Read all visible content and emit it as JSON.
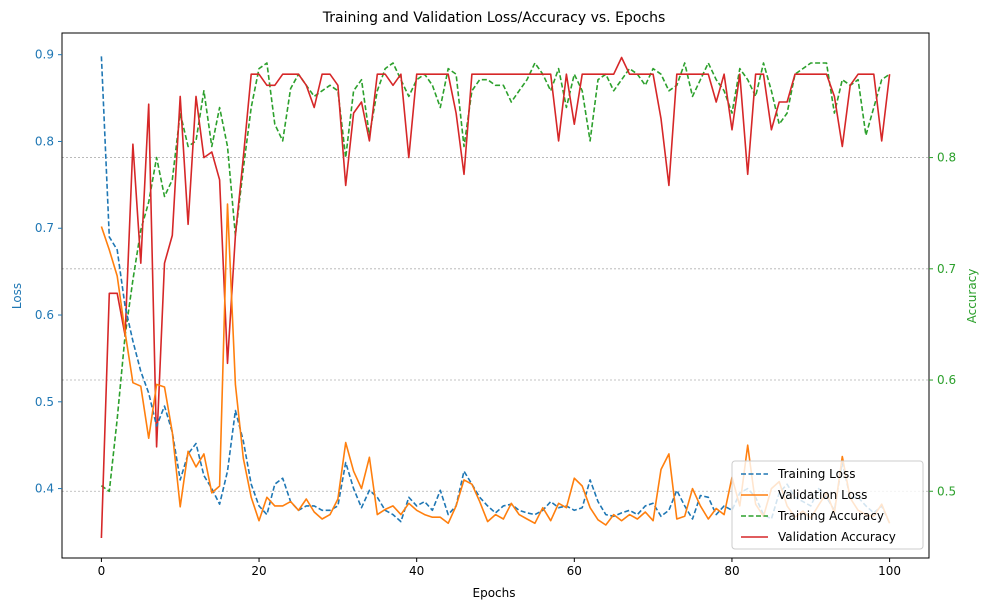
{
  "chart_data": {
    "type": "line",
    "title": "Training and Validation Loss/Accuracy vs. Epochs",
    "xlabel": "Epochs",
    "ylabel_left": "Loss",
    "ylabel_right": "Accuracy",
    "xlim": [
      -5,
      105
    ],
    "ylim_left": [
      0.32,
      0.925
    ],
    "ylim_right": [
      0.44,
      0.912
    ],
    "xticks": [
      0,
      20,
      40,
      60,
      80,
      100
    ],
    "yticks_left": [
      0.4,
      0.5,
      0.6,
      0.7,
      0.8,
      0.9
    ],
    "yticks_right": [
      0.5,
      0.6,
      0.7,
      0.8
    ],
    "grid": "right-axis horizontal, dotted",
    "legend_position": "lower-right",
    "colors": {
      "training_loss": "#1f77b4",
      "validation_loss": "#ff7f0e",
      "training_accuracy": "#2ca02c",
      "validation_accuracy": "#d62728",
      "left_axis": "#1f77b4",
      "right_axis": "#2ca02c"
    },
    "series": [
      {
        "name": "Training Loss",
        "axis": "left",
        "style": "dashed",
        "color": "#1f77b4",
        "x": [
          0,
          1,
          2,
          3,
          4,
          5,
          6,
          7,
          8,
          9,
          10,
          11,
          12,
          13,
          14,
          15,
          16,
          17,
          18,
          19,
          20,
          21,
          22,
          23,
          24,
          25,
          26,
          27,
          28,
          29,
          30,
          31,
          32,
          33,
          34,
          35,
          36,
          37,
          38,
          39,
          40,
          41,
          42,
          43,
          44,
          45,
          46,
          47,
          48,
          49,
          50,
          51,
          52,
          53,
          54,
          55,
          56,
          57,
          58,
          59,
          60,
          61,
          62,
          63,
          64,
          65,
          66,
          67,
          68,
          69,
          70,
          71,
          72,
          73,
          74,
          75,
          76,
          77,
          78,
          79,
          80,
          81,
          82,
          83,
          84,
          85,
          86,
          87,
          88,
          89,
          90,
          91,
          92,
          93,
          94,
          95,
          96,
          97,
          98,
          99,
          100
        ],
        "y": [
          0.898,
          0.69,
          0.675,
          0.61,
          0.57,
          0.535,
          0.51,
          0.472,
          0.495,
          0.465,
          0.41,
          0.44,
          0.452,
          0.415,
          0.4,
          0.382,
          0.42,
          0.49,
          0.455,
          0.405,
          0.38,
          0.37,
          0.405,
          0.412,
          0.385,
          0.375,
          0.38,
          0.38,
          0.375,
          0.375,
          0.38,
          0.43,
          0.4,
          0.378,
          0.398,
          0.39,
          0.375,
          0.37,
          0.362,
          0.39,
          0.38,
          0.385,
          0.375,
          0.398,
          0.37,
          0.38,
          0.42,
          0.405,
          0.39,
          0.38,
          0.372,
          0.38,
          0.382,
          0.375,
          0.372,
          0.37,
          0.375,
          0.385,
          0.378,
          0.38,
          0.375,
          0.378,
          0.41,
          0.385,
          0.37,
          0.368,
          0.372,
          0.375,
          0.37,
          0.38,
          0.383,
          0.368,
          0.375,
          0.398,
          0.38,
          0.365,
          0.392,
          0.39,
          0.37,
          0.38,
          0.375,
          0.395,
          0.4,
          0.39,
          0.37,
          0.365,
          0.395,
          0.405,
          0.39,
          0.385,
          0.38,
          0.4,
          0.39,
          0.375,
          0.43,
          0.39,
          0.39,
          0.38,
          0.372,
          0.38,
          0.36
        ]
      },
      {
        "name": "Validation Loss",
        "axis": "left",
        "style": "solid",
        "color": "#ff7f0e",
        "x": [
          0,
          1,
          2,
          3,
          4,
          5,
          6,
          7,
          8,
          9,
          10,
          11,
          12,
          13,
          14,
          15,
          16,
          17,
          18,
          19,
          20,
          21,
          22,
          23,
          24,
          25,
          26,
          27,
          28,
          29,
          30,
          31,
          32,
          33,
          34,
          35,
          36,
          37,
          38,
          39,
          40,
          41,
          42,
          43,
          44,
          45,
          46,
          47,
          48,
          49,
          50,
          51,
          52,
          53,
          54,
          55,
          56,
          57,
          58,
          59,
          60,
          61,
          62,
          63,
          64,
          65,
          66,
          67,
          68,
          69,
          70,
          71,
          72,
          73,
          74,
          75,
          76,
          77,
          78,
          79,
          80,
          81,
          82,
          83,
          84,
          85,
          86,
          87,
          88,
          89,
          90,
          91,
          92,
          93,
          94,
          95,
          96,
          97,
          98,
          99,
          100
        ],
        "y": [
          0.702,
          0.675,
          0.645,
          0.58,
          0.522,
          0.518,
          0.458,
          0.52,
          0.517,
          0.465,
          0.379,
          0.443,
          0.425,
          0.44,
          0.395,
          0.403,
          0.728,
          0.52,
          0.435,
          0.39,
          0.363,
          0.39,
          0.38,
          0.38,
          0.385,
          0.375,
          0.388,
          0.373,
          0.365,
          0.37,
          0.388,
          0.453,
          0.42,
          0.4,
          0.436,
          0.37,
          0.376,
          0.38,
          0.37,
          0.383,
          0.375,
          0.37,
          0.367,
          0.367,
          0.36,
          0.38,
          0.41,
          0.405,
          0.385,
          0.362,
          0.37,
          0.365,
          0.383,
          0.37,
          0.365,
          0.36,
          0.378,
          0.363,
          0.383,
          0.378,
          0.412,
          0.403,
          0.378,
          0.364,
          0.358,
          0.37,
          0.363,
          0.37,
          0.365,
          0.373,
          0.363,
          0.422,
          0.44,
          0.365,
          0.368,
          0.4,
          0.38,
          0.365,
          0.377,
          0.37,
          0.413,
          0.38,
          0.45,
          0.382,
          0.368,
          0.4,
          0.408,
          0.38,
          0.367,
          0.374,
          0.366,
          0.381,
          0.395,
          0.372,
          0.437,
          0.389,
          0.375,
          0.37,
          0.368,
          0.382,
          0.36
        ]
      },
      {
        "name": "Training Accuracy",
        "axis": "right",
        "style": "dashed",
        "color": "#2ca02c",
        "x": [
          0,
          1,
          2,
          3,
          4,
          5,
          6,
          7,
          8,
          9,
          10,
          11,
          12,
          13,
          14,
          15,
          16,
          17,
          18,
          19,
          20,
          21,
          22,
          23,
          24,
          25,
          26,
          27,
          28,
          29,
          30,
          31,
          32,
          33,
          34,
          35,
          36,
          37,
          38,
          39,
          40,
          41,
          42,
          43,
          44,
          45,
          46,
          47,
          48,
          49,
          50,
          51,
          52,
          53,
          54,
          55,
          56,
          57,
          58,
          59,
          60,
          61,
          62,
          63,
          64,
          65,
          66,
          67,
          68,
          69,
          70,
          71,
          72,
          73,
          74,
          75,
          76,
          77,
          78,
          79,
          80,
          81,
          82,
          83,
          84,
          85,
          86,
          87,
          88,
          89,
          90,
          91,
          92,
          93,
          94,
          95,
          96,
          97,
          98,
          99,
          100
        ],
        "y": [
          0.505,
          0.5,
          0.565,
          0.64,
          0.69,
          0.735,
          0.76,
          0.8,
          0.765,
          0.78,
          0.84,
          0.81,
          0.815,
          0.86,
          0.81,
          0.845,
          0.81,
          0.73,
          0.79,
          0.845,
          0.88,
          0.885,
          0.83,
          0.815,
          0.862,
          0.875,
          0.865,
          0.855,
          0.86,
          0.865,
          0.86,
          0.8,
          0.86,
          0.87,
          0.82,
          0.86,
          0.88,
          0.885,
          0.87,
          0.855,
          0.87,
          0.875,
          0.865,
          0.845,
          0.88,
          0.875,
          0.81,
          0.86,
          0.87,
          0.87,
          0.865,
          0.865,
          0.85,
          0.86,
          0.87,
          0.885,
          0.875,
          0.86,
          0.88,
          0.845,
          0.875,
          0.86,
          0.815,
          0.87,
          0.875,
          0.86,
          0.87,
          0.88,
          0.875,
          0.865,
          0.88,
          0.875,
          0.86,
          0.865,
          0.885,
          0.855,
          0.87,
          0.885,
          0.87,
          0.86,
          0.84,
          0.88,
          0.87,
          0.855,
          0.885,
          0.86,
          0.83,
          0.84,
          0.875,
          0.88,
          0.885,
          0.885,
          0.885,
          0.84,
          0.87,
          0.865,
          0.87,
          0.82,
          0.845,
          0.87,
          0.875
        ]
      },
      {
        "name": "Validation Accuracy",
        "axis": "right",
        "style": "solid",
        "color": "#d62728",
        "x": [
          0,
          1,
          2,
          3,
          4,
          5,
          6,
          7,
          8,
          9,
          10,
          11,
          12,
          13,
          14,
          15,
          16,
          17,
          18,
          19,
          20,
          21,
          22,
          23,
          24,
          25,
          26,
          27,
          28,
          29,
          30,
          31,
          32,
          33,
          34,
          35,
          36,
          37,
          38,
          39,
          40,
          41,
          42,
          43,
          44,
          45,
          46,
          47,
          48,
          49,
          50,
          51,
          52,
          53,
          54,
          55,
          56,
          57,
          58,
          59,
          60,
          61,
          62,
          63,
          64,
          65,
          66,
          67,
          68,
          69,
          70,
          71,
          72,
          73,
          74,
          75,
          76,
          77,
          78,
          79,
          80,
          81,
          82,
          83,
          84,
          85,
          86,
          87,
          88,
          89,
          90,
          91,
          92,
          93,
          94,
          95,
          96,
          97,
          98,
          99,
          100
        ],
        "y": [
          0.458,
          0.678,
          0.678,
          0.64,
          0.812,
          0.705,
          0.848,
          0.54,
          0.705,
          0.73,
          0.855,
          0.74,
          0.855,
          0.8,
          0.805,
          0.78,
          0.615,
          0.73,
          0.8,
          0.875,
          0.875,
          0.865,
          0.865,
          0.875,
          0.875,
          0.875,
          0.865,
          0.845,
          0.875,
          0.875,
          0.865,
          0.775,
          0.84,
          0.85,
          0.815,
          0.875,
          0.875,
          0.865,
          0.875,
          0.8,
          0.875,
          0.875,
          0.875,
          0.875,
          0.875,
          0.84,
          0.785,
          0.875,
          0.875,
          0.875,
          0.875,
          0.875,
          0.875,
          0.875,
          0.875,
          0.875,
          0.875,
          0.875,
          0.815,
          0.875,
          0.83,
          0.875,
          0.875,
          0.875,
          0.875,
          0.875,
          0.89,
          0.875,
          0.875,
          0.875,
          0.875,
          0.835,
          0.775,
          0.875,
          0.875,
          0.875,
          0.875,
          0.875,
          0.85,
          0.875,
          0.825,
          0.875,
          0.785,
          0.875,
          0.875,
          0.825,
          0.85,
          0.85,
          0.875,
          0.875,
          0.875,
          0.875,
          0.875,
          0.855,
          0.81,
          0.865,
          0.875,
          0.875,
          0.875,
          0.815,
          0.875
        ]
      }
    ]
  }
}
